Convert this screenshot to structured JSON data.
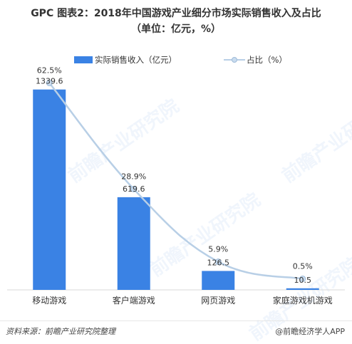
{
  "title_line1": "GPC 图表2：2018年中国游戏产业细分市场实际销售收入及占比",
  "title_line2": "（单位：亿元，%）",
  "legend": {
    "bar_label": "实际销售收入（亿元）",
    "line_label": "占比（%）"
  },
  "watermark": "前瞻产业研究院",
  "footer": {
    "source": "资料来源：前瞻产业研究院整理",
    "brand": "@前瞻经济学人APP"
  },
  "colors": {
    "bar": "#3a82e4",
    "line": "#b8cfe6",
    "point": "#c9dcef"
  },
  "chart_data": {
    "type": "bar",
    "categories": [
      "移动游戏",
      "客户端游戏",
      "网页游戏",
      "家庭游戏机游戏"
    ],
    "series": [
      {
        "name": "实际销售收入（亿元）",
        "type": "bar",
        "values": [
          1339.6,
          619.6,
          126.5,
          10.5
        ],
        "labels": [
          "1339.6",
          "619.6",
          "126.5",
          "10.5"
        ]
      },
      {
        "name": "占比（%）",
        "type": "line",
        "values": [
          62.5,
          28.9,
          5.9,
          0.5
        ],
        "labels": [
          "62.5%",
          "28.9%",
          "5.9%",
          "0.5%"
        ]
      }
    ],
    "bar_ylim": [
      0,
      1500
    ],
    "line_ylim": [
      -3,
      68
    ],
    "grid": false,
    "legend_position": "top"
  }
}
